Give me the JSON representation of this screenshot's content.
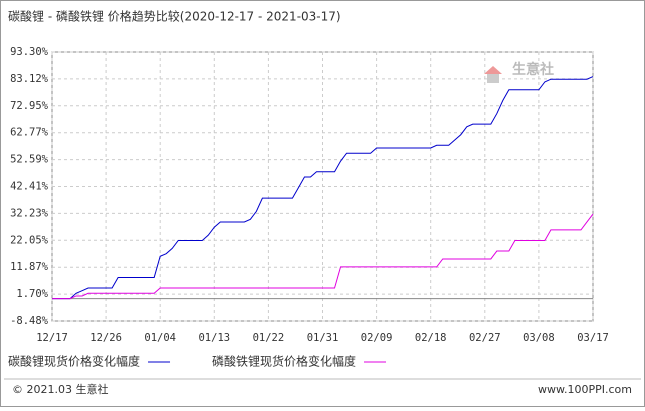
{
  "chart_data": {
    "type": "line",
    "title": "碳酸锂 - 磷酸铁锂 价格趋势比较(2020-12-17 - 2021-03-17)",
    "watermark": "生意社",
    "footer_left": "© 2021.03 生意社",
    "footer_right": "www.100PPI.com",
    "categories": [
      "12/17",
      null,
      null,
      null,
      null,
      null,
      null,
      null,
      null,
      "12/26",
      null,
      null,
      null,
      null,
      null,
      null,
      null,
      null,
      "01/04",
      null,
      null,
      null,
      null,
      null,
      null,
      null,
      null,
      "01/13",
      null,
      null,
      null,
      null,
      null,
      null,
      null,
      null,
      "01/22",
      null,
      null,
      null,
      null,
      null,
      null,
      null,
      null,
      "01/31",
      null,
      null,
      null,
      null,
      null,
      null,
      null,
      null,
      "02/09",
      null,
      null,
      null,
      null,
      null,
      null,
      null,
      null,
      "02/18",
      null,
      null,
      null,
      null,
      null,
      null,
      null,
      null,
      "02/27",
      null,
      null,
      null,
      null,
      null,
      null,
      null,
      null,
      "03/08",
      null,
      null,
      null,
      null,
      null,
      null,
      null,
      null,
      "03/17"
    ],
    "series": [
      {
        "name": "碳酸锂现货价格变化幅度",
        "color": "#0000cc",
        "values": [
          0,
          0,
          0,
          0,
          2,
          3,
          4,
          4,
          4,
          4,
          4,
          8,
          8,
          8,
          8,
          8,
          8,
          8,
          16,
          17,
          19,
          22,
          22,
          22,
          22,
          22,
          24,
          27,
          29,
          29,
          29,
          29,
          29,
          30,
          33,
          38,
          38,
          38,
          38,
          38,
          38,
          42,
          46,
          46,
          48,
          48,
          48,
          48,
          52,
          55,
          55,
          55,
          55,
          55,
          57,
          57,
          57,
          57,
          57,
          57,
          57,
          57,
          57,
          57,
          58,
          58,
          58,
          60,
          62,
          65,
          66,
          66,
          66,
          66,
          70,
          75,
          79,
          79,
          79,
          79,
          79,
          79,
          82,
          83,
          83,
          83,
          83,
          83,
          83,
          83,
          84
        ]
      },
      {
        "name": "磷酸铁锂现货价格变化幅度",
        "color": "#e000e0",
        "values": [
          0,
          0,
          0,
          0,
          1,
          1,
          2,
          2,
          2,
          2,
          2,
          2,
          2,
          2,
          2,
          2,
          2,
          2,
          4,
          4,
          4,
          4,
          4,
          4,
          4,
          4,
          4,
          4,
          4,
          4,
          4,
          4,
          4,
          4,
          4,
          4,
          4,
          4,
          4,
          4,
          4,
          4,
          4,
          4,
          4,
          4,
          4,
          4,
          12,
          12,
          12,
          12,
          12,
          12,
          12,
          12,
          12,
          12,
          12,
          12,
          12,
          12,
          12,
          12,
          12,
          15,
          15,
          15,
          15,
          15,
          15,
          15,
          15,
          15,
          18,
          18,
          18,
          22,
          22,
          22,
          22,
          22,
          22,
          26,
          26,
          26,
          26,
          26,
          26,
          29,
          32
        ]
      }
    ],
    "ylim": [
      -8.48,
      93.3
    ],
    "yticks": [
      {
        "value": -8.48,
        "label": "-8.48%"
      },
      {
        "value": 1.7,
        "label": "1.70%"
      },
      {
        "value": 11.87,
        "label": "11.87%"
      },
      {
        "value": 22.05,
        "label": "22.05%"
      },
      {
        "value": 32.23,
        "label": "32.23%"
      },
      {
        "value": 42.41,
        "label": "42.41%"
      },
      {
        "value": 52.59,
        "label": "52.59%"
      },
      {
        "value": 62.77,
        "label": "62.77%"
      },
      {
        "value": 72.95,
        "label": "72.95%"
      },
      {
        "value": 83.12,
        "label": "83.12%"
      },
      {
        "value": 93.3,
        "label": "93.30%"
      }
    ],
    "grid": true
  }
}
